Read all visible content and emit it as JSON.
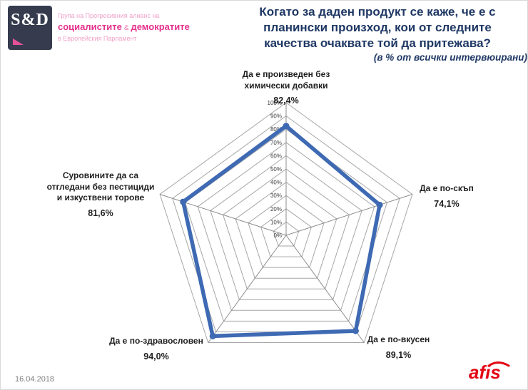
{
  "logo": {
    "square_text": "S&D",
    "line1": "Група на Прогресивния алианс на",
    "bold1": "социалистите",
    "amp": "&",
    "bold2": "демократите",
    "line3": "в Европейския Парламент"
  },
  "header": {
    "title_lines": [
      "Когато за даден продукт се каже, че е с",
      "планински произход, кои от следните",
      "качества очаквате той да притежава?"
    ],
    "subtitle": "(в % от всички интервюирани)"
  },
  "chart_data": {
    "type": "radar",
    "title": "Когато за даден продукт се каже, че е с планински произход, кои от следните качества очаквате той да притежава? (в % от всички интервюирани)",
    "categories": [
      "Да е произведен без химически добавки",
      "Да е по-скъп",
      "Да е по-вкусен",
      "Да е по-здравословен",
      "Суровините да са отгледани без пестициди и изкуствени торове"
    ],
    "values": [
      82.4,
      74.1,
      89.1,
      94.0,
      81.6
    ],
    "value_labels": [
      "82,4%",
      "74,1%",
      "89,1%",
      "94,0%",
      "81,6%"
    ],
    "label_lines": [
      "Да е произведен без\nхимически добавки",
      "Да е по-скъп",
      "Да е по-вкусен",
      "Да е по-здравословен",
      "Суровините да са\nотгледани без пестициди\nи изкуствени торове"
    ],
    "axis": {
      "min": 0,
      "max": 100,
      "step": 10,
      "tick_labels": [
        "0%",
        "10%",
        "20%",
        "30%",
        "40%",
        "50%",
        "60%",
        "70%",
        "80%",
        "90%",
        "100%"
      ]
    },
    "grid": true,
    "legend": "none",
    "series_color": "#3e69b3"
  },
  "footer": {
    "date": "16.04.2018",
    "brand": "afis"
  }
}
